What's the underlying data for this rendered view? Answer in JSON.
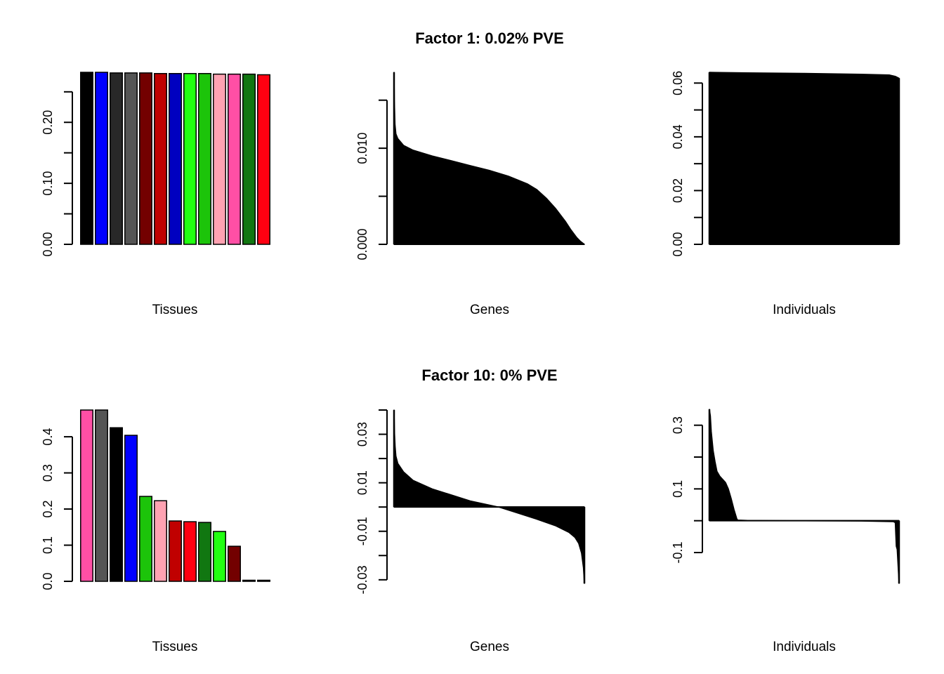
{
  "chart_data": [
    {
      "id": "f1-tissues",
      "type": "bar",
      "panel_title": "Factor 1: 0.02% PVE",
      "xlabel": "Tissues",
      "ylabel": "",
      "ylim": [
        0,
        0.282
      ],
      "yticks": [
        0,
        0.05,
        0.1,
        0.15,
        0.2,
        0.25
      ],
      "ytick_labels": [
        "0.00",
        "",
        "0.10",
        "",
        "0.20",
        ""
      ],
      "values": [
        0.282,
        0.282,
        0.281,
        0.281,
        0.281,
        0.28,
        0.28,
        0.28,
        0.28,
        0.279,
        0.279,
        0.279,
        0.278
      ],
      "colors": [
        "#000000",
        "#0000ff",
        "#282828",
        "#555555",
        "#730000",
        "#c00000",
        "#0000c0",
        "#22ff11",
        "#1cc40a",
        "#ffa2b2",
        "#ff4fa5",
        "#117711",
        "#ff0011"
      ]
    },
    {
      "id": "f1-genes",
      "type": "area",
      "xlabel": "Genes",
      "ylim": [
        0,
        0.0179
      ],
      "yticks": [
        0,
        0.005,
        0.01,
        0.015
      ],
      "ytick_labels": [
        "0.000",
        "",
        "0.010",
        ""
      ],
      "x": [
        0,
        0.002,
        0.005,
        0.01,
        0.02,
        0.05,
        0.1,
        0.2,
        0.3,
        0.4,
        0.5,
        0.6,
        0.7,
        0.75,
        0.8,
        0.85,
        0.9,
        0.93,
        0.96,
        0.98,
        1.0
      ],
      "values": [
        0.0179,
        0.015,
        0.0125,
        0.0115,
        0.011,
        0.0103,
        0.0098,
        0.0092,
        0.0087,
        0.0082,
        0.0077,
        0.0071,
        0.0063,
        0.0057,
        0.0048,
        0.0037,
        0.0024,
        0.0015,
        0.0007,
        0.0003,
        0.0
      ]
    },
    {
      "id": "f1-individuals",
      "type": "area",
      "xlabel": "Individuals",
      "ylim": [
        0,
        0.064
      ],
      "yticks": [
        0,
        0.01,
        0.02,
        0.03,
        0.04,
        0.05,
        0.06
      ],
      "ytick_labels": [
        "0.00",
        "",
        "0.02",
        "",
        "0.04",
        "",
        "0.06"
      ],
      "x": [
        0,
        0.2,
        0.5,
        0.8,
        0.95,
        0.98,
        1.0
      ],
      "values": [
        0.064,
        0.0638,
        0.0636,
        0.0633,
        0.063,
        0.0625,
        0.0618
      ]
    },
    {
      "id": "f10-tissues",
      "type": "bar",
      "panel_title": "Factor 10: 0% PVE",
      "xlabel": "Tissues",
      "ylim": [
        0,
        0.474
      ],
      "yticks": [
        0,
        0.1,
        0.2,
        0.3,
        0.4
      ],
      "ytick_labels": [
        "0.0",
        "0.1",
        "0.2",
        "0.3",
        "0.4"
      ],
      "values": [
        0.474,
        0.474,
        0.425,
        0.404,
        0.235,
        0.223,
        0.167,
        0.165,
        0.163,
        0.138,
        0.097,
        0.003,
        0.003
      ],
      "colors": [
        "#ff4fa5",
        "#555555",
        "#000000",
        "#0000ff",
        "#1cc40a",
        "#ffa2b2",
        "#c00000",
        "#ff0011",
        "#117711",
        "#22ff11",
        "#730000",
        "#282828",
        "#000000"
      ]
    },
    {
      "id": "f10-genes",
      "type": "area",
      "xlabel": "Genes",
      "ylim": [
        -0.0315,
        0.04
      ],
      "yticks": [
        -0.03,
        -0.02,
        -0.01,
        0,
        0.01,
        0.02,
        0.03,
        0.04
      ],
      "ytick_labels": [
        "-0.03",
        "",
        "-0.01",
        "",
        "0.01",
        "",
        "0.03",
        ""
      ],
      "x": [
        0,
        0.003,
        0.006,
        0.01,
        0.02,
        0.05,
        0.1,
        0.2,
        0.3,
        0.4,
        0.55,
        0.65,
        0.75,
        0.85,
        0.92,
        0.95,
        0.97,
        0.985,
        0.995,
        1.0
      ],
      "values": [
        0.04,
        0.03,
        0.025,
        0.021,
        0.018,
        0.0145,
        0.011,
        0.0075,
        0.005,
        0.0025,
        0.0,
        -0.0025,
        -0.005,
        -0.0078,
        -0.0105,
        -0.0125,
        -0.015,
        -0.019,
        -0.025,
        -0.0315
      ]
    },
    {
      "id": "f10-individuals",
      "type": "area",
      "xlabel": "Individuals",
      "ylim": [
        -0.197,
        0.35
      ],
      "yticks": [
        -0.1,
        0,
        0.1,
        0.2,
        0.3
      ],
      "ytick_labels": [
        "-0.1",
        "",
        "0.1",
        "",
        "0.3"
      ],
      "x": [
        0,
        0.005,
        0.01,
        0.02,
        0.03,
        0.04,
        0.055,
        0.07,
        0.085,
        0.1,
        0.115,
        0.13,
        0.145,
        0.15,
        0.2,
        0.5,
        0.8,
        0.97,
        0.98,
        0.985,
        0.99,
        1.0
      ],
      "values": [
        0.35,
        0.33,
        0.28,
        0.22,
        0.185,
        0.155,
        0.14,
        0.13,
        0.12,
        0.1,
        0.07,
        0.035,
        0.005,
        0.002,
        0.001,
        0.0,
        -0.001,
        -0.003,
        -0.006,
        -0.08,
        -0.09,
        -0.197
      ]
    }
  ]
}
